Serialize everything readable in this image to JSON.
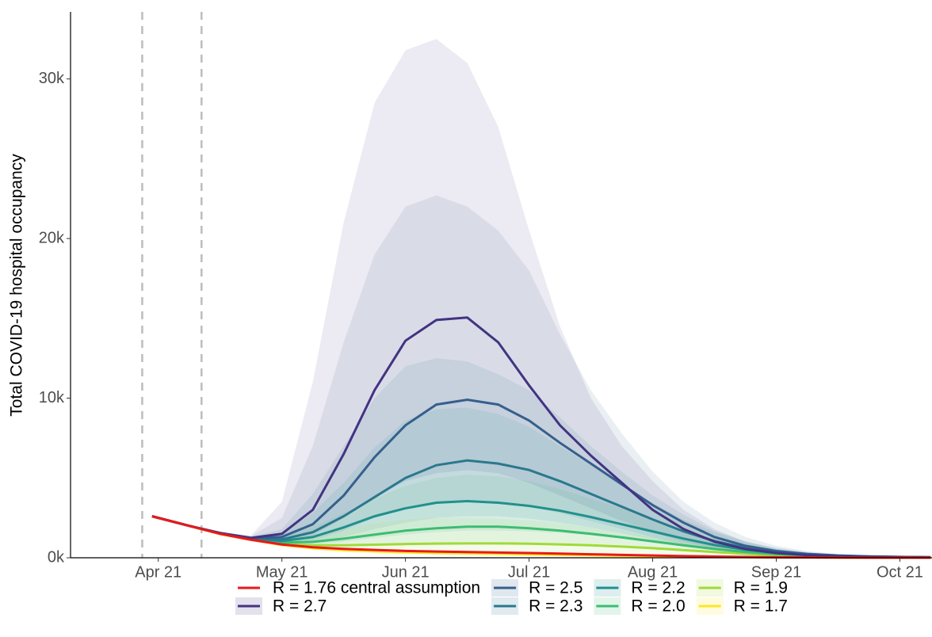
{
  "chart_data": {
    "type": "line",
    "y_label": "Total COVID-19 hospital occupancy",
    "xlim": [
      3.29,
      10.26
    ],
    "ylim": [
      0,
      34200
    ],
    "xticks": [
      {
        "value": 4,
        "label": "Apr 21"
      },
      {
        "value": 5,
        "label": "May 21"
      },
      {
        "value": 6,
        "label": "Jun 21"
      },
      {
        "value": 7,
        "label": "Jul 21"
      },
      {
        "value": 8,
        "label": "Aug 21"
      },
      {
        "value": 9,
        "label": "Sep 21"
      },
      {
        "value": 10,
        "label": "Oct 21"
      }
    ],
    "yticks": [
      {
        "value": 0,
        "label": "0k"
      },
      {
        "value": 10000,
        "label": "10k"
      },
      {
        "value": 20000,
        "label": "20k"
      },
      {
        "value": 30000,
        "label": "30k"
      }
    ],
    "vlines": [
      3.87,
      4.35
    ],
    "x": [
      3.95,
      4.25,
      4.5,
      4.75,
      5.0,
      5.25,
      5.5,
      5.75,
      6.0,
      6.25,
      6.5,
      6.75,
      7.0,
      7.25,
      7.5,
      7.75,
      8.0,
      8.25,
      8.5,
      8.75,
      9.0,
      9.25,
      9.5,
      9.75,
      10.0,
      10.25
    ],
    "series": [
      {
        "name": "R = 1.76 central assumption",
        "color": "#e8191b",
        "values": [
          2600,
          2000,
          1500,
          1130,
          830,
          660,
          560,
          490,
          430,
          390,
          360,
          330,
          300,
          260,
          220,
          180,
          140,
          105,
          75,
          50,
          34,
          22,
          14,
          9,
          6,
          4
        ]
      },
      {
        "name": "R = 2.7",
        "color": "#433382",
        "values": [
          2600,
          2000,
          1550,
          1250,
          1500,
          3000,
          6500,
          10500,
          13600,
          14900,
          15050,
          13500,
          10800,
          8300,
          6400,
          4700,
          3000,
          1800,
          1000,
          550,
          300,
          170,
          100,
          60,
          40,
          25
        ],
        "upper": [
          2600,
          2000,
          1600,
          1400,
          3500,
          11000,
          21000,
          28500,
          31800,
          32500,
          31000,
          27000,
          20500,
          14500,
          10000,
          7000,
          4800,
          3000,
          1800,
          1000,
          550,
          300,
          170,
          100,
          60,
          40
        ],
        "lower": [
          2600,
          1950,
          1500,
          1150,
          1000,
          1400,
          2500,
          3800,
          4800,
          5300,
          5500,
          5300,
          4700,
          3900,
          3100,
          2300,
          1600,
          1000,
          600,
          350,
          200,
          120,
          70,
          45,
          30,
          20
        ]
      },
      {
        "name": "R = 2.5",
        "color": "#355f8d",
        "values": [
          2600,
          2000,
          1550,
          1220,
          1300,
          2100,
          3900,
          6300,
          8300,
          9600,
          9900,
          9600,
          8600,
          7200,
          5900,
          4600,
          3300,
          2200,
          1300,
          750,
          420,
          240,
          140,
          85,
          55,
          35
        ],
        "upper": [
          2600,
          2000,
          1600,
          1350,
          2500,
          7000,
          13500,
          19000,
          22000,
          22700,
          22000,
          20500,
          18000,
          14000,
          10500,
          7800,
          5400,
          3500,
          2200,
          1300,
          750,
          420,
          240,
          140,
          85,
          55
        ],
        "lower": [
          2600,
          1950,
          1500,
          1150,
          950,
          1100,
          1700,
          2500,
          3100,
          3500,
          3600,
          3500,
          3200,
          2800,
          2300,
          1800,
          1300,
          850,
          520,
          310,
          180,
          100,
          60,
          40,
          25,
          15
        ]
      },
      {
        "name": "R = 2.3",
        "color": "#2a788e",
        "values": [
          2600,
          2000,
          1540,
          1200,
          1150,
          1600,
          2600,
          3800,
          5000,
          5800,
          6100,
          5900,
          5500,
          4800,
          4000,
          3200,
          2400,
          1650,
          1050,
          620,
          360,
          210,
          120,
          75,
          48,
          30
        ],
        "upper": [
          2600,
          2000,
          1580,
          1300,
          1800,
          4000,
          7000,
          10000,
          12000,
          12500,
          12300,
          11500,
          10500,
          8800,
          7000,
          5400,
          3900,
          2700,
          1700,
          1050,
          620,
          360,
          210,
          120,
          75,
          48
        ],
        "lower": [
          2600,
          1950,
          1500,
          1150,
          900,
          950,
          1300,
          1800,
          2200,
          2500,
          2600,
          2600,
          2450,
          2200,
          1900,
          1550,
          1150,
          800,
          520,
          320,
          190,
          110,
          65,
          40,
          25,
          15
        ]
      },
      {
        "name": "R = 2.2",
        "color": "#21908d",
        "values": [
          2600,
          2000,
          1530,
          1190,
          1050,
          1300,
          1900,
          2600,
          3100,
          3450,
          3550,
          3450,
          3250,
          2950,
          2550,
          2100,
          1650,
          1200,
          800,
          500,
          300,
          180,
          105,
          65,
          42,
          27
        ],
        "upper": [
          2600,
          2000,
          1570,
          1260,
          1500,
          2800,
          4700,
          6900,
          8600,
          9300,
          9400,
          9000,
          8200,
          7000,
          5800,
          4600,
          3400,
          2400,
          1600,
          1000,
          600,
          350,
          200,
          120,
          75,
          45
        ],
        "lower": [
          2600,
          1950,
          1500,
          1130,
          870,
          850,
          1000,
          1250,
          1450,
          1600,
          1700,
          1700,
          1650,
          1550,
          1400,
          1200,
          950,
          700,
          480,
          310,
          190,
          110,
          65,
          40,
          25,
          15
        ]
      },
      {
        "name": "R = 2.0",
        "color": "#3dbc74",
        "values": [
          2600,
          2000,
          1520,
          1170,
          950,
          1000,
          1200,
          1450,
          1700,
          1850,
          1950,
          1950,
          1850,
          1700,
          1500,
          1280,
          1030,
          780,
          550,
          360,
          230,
          140,
          85,
          55,
          35,
          22
        ],
        "upper": [
          2600,
          2000,
          1560,
          1230,
          1300,
          1900,
          2800,
          3700,
          4500,
          5000,
          5200,
          5100,
          4800,
          4300,
          3700,
          3100,
          2400,
          1750,
          1200,
          780,
          480,
          290,
          170,
          100,
          62,
          40
        ],
        "lower": [
          2600,
          1950,
          1480,
          1100,
          800,
          700,
          700,
          750,
          800,
          850,
          870,
          870,
          850,
          800,
          750,
          680,
          580,
          460,
          340,
          240,
          160,
          100,
          60,
          38,
          24,
          15
        ]
      },
      {
        "name": "R = 1.9",
        "color": "#a0da39",
        "values": [
          2600,
          2000,
          1510,
          1150,
          880,
          780,
          780,
          820,
          860,
          890,
          900,
          900,
          880,
          840,
          780,
          700,
          600,
          480,
          360,
          250,
          170,
          110,
          70,
          45,
          30,
          20
        ],
        "upper": [
          2600,
          2000,
          1550,
          1210,
          1150,
          1400,
          1800,
          2150,
          2400,
          2500,
          2500,
          2450,
          2350,
          2150,
          1900,
          1600,
          1300,
          1000,
          720,
          500,
          330,
          210,
          130,
          80,
          50,
          32
        ],
        "lower": [
          2600,
          1950,
          1470,
          1080,
          760,
          550,
          450,
          400,
          380,
          370,
          360,
          350,
          340,
          320,
          300,
          270,
          240,
          200,
          160,
          120,
          85,
          55,
          35,
          22,
          14,
          9
        ]
      },
      {
        "name": "R = 1.7",
        "color": "#fde725",
        "values": [
          2600,
          1990,
          1490,
          1120,
          800,
          600,
          480,
          400,
          340,
          300,
          270,
          240,
          210,
          180,
          150,
          120,
          95,
          70,
          50,
          35,
          24,
          16,
          10,
          7,
          5,
          3
        ],
        "upper": [
          2600,
          2000,
          1530,
          1180,
          900,
          750,
          650,
          580,
          520,
          470,
          430,
          390,
          350,
          300,
          250,
          200,
          160,
          120,
          85,
          60,
          40,
          27,
          18,
          12,
          8,
          5
        ],
        "lower": [
          2600,
          1950,
          1450,
          1050,
          720,
          480,
          350,
          270,
          210,
          170,
          140,
          120,
          100,
          85,
          70,
          55,
          42,
          30,
          21,
          15,
          10,
          7,
          5,
          3,
          2,
          1
        ]
      }
    ]
  }
}
